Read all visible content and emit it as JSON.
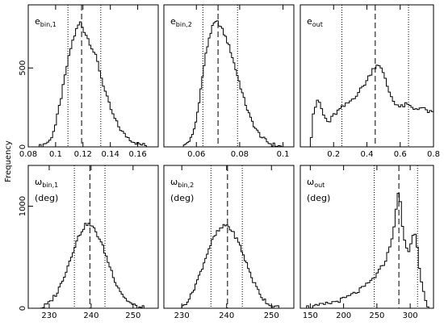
{
  "ylabel": "Frequency",
  "chart_data": [
    {
      "type": "histogram",
      "label_main": "e",
      "label_sub": "bin,1",
      "label_extra": "",
      "xlim": [
        0.08,
        0.175
      ],
      "ylim": [
        0,
        900
      ],
      "xticks": [
        0.08,
        0.1,
        0.12,
        0.14,
        0.16
      ],
      "xtick_labels": [
        "0.08",
        "0.1",
        "0.12",
        "0.14",
        "0.16"
      ],
      "yticks": [
        0,
        500
      ],
      "ytick_labels": [
        "0",
        "500"
      ],
      "median": 0.119,
      "ci": [
        0.109,
        0.133
      ],
      "curve_x": [
        0.088,
        0.096,
        0.1,
        0.104,
        0.108,
        0.112,
        0.116,
        0.118,
        0.12,
        0.123,
        0.126,
        0.13,
        0.134,
        0.138,
        0.142,
        0.146,
        0.15,
        0.155,
        0.16,
        0.166,
        0.172
      ],
      "curve_y": [
        0,
        40,
        140,
        310,
        500,
        660,
        760,
        790,
        750,
        700,
        640,
        560,
        420,
        300,
        200,
        130,
        80,
        45,
        20,
        8,
        0
      ]
    },
    {
      "type": "histogram",
      "label_main": "e",
      "label_sub": "bin,2",
      "label_extra": "",
      "xlim": [
        0.045,
        0.105
      ],
      "ylim": [
        0,
        900
      ],
      "xticks": [
        0.06,
        0.08,
        0.1
      ],
      "xtick_labels": [
        "0.06",
        "0.08",
        "0.1"
      ],
      "yticks": [],
      "ytick_labels": [],
      "median": 0.07,
      "ci": [
        0.063,
        0.079
      ],
      "curve_x": [
        0.054,
        0.058,
        0.06,
        0.062,
        0.064,
        0.066,
        0.068,
        0.07,
        0.072,
        0.074,
        0.076,
        0.078,
        0.08,
        0.082,
        0.085,
        0.088,
        0.091,
        0.094,
        0.097,
        0.1
      ],
      "curve_y": [
        0,
        60,
        170,
        360,
        560,
        700,
        780,
        790,
        740,
        680,
        600,
        500,
        400,
        300,
        180,
        100,
        50,
        20,
        8,
        0
      ]
    },
    {
      "type": "histogram",
      "label_main": "e",
      "label_sub": "out",
      "label_extra": "",
      "xlim": [
        0.0,
        0.8
      ],
      "ylim": [
        0,
        900
      ],
      "xticks": [
        0.2,
        0.4,
        0.6,
        0.8
      ],
      "xtick_labels": [
        "0.2",
        "0.4",
        "0.6",
        "0.8"
      ],
      "yticks": [],
      "ytick_labels": [],
      "median": 0.45,
      "ci": [
        0.25,
        0.65
      ],
      "curve_x": [
        0.06,
        0.08,
        0.11,
        0.14,
        0.17,
        0.2,
        0.24,
        0.28,
        0.32,
        0.36,
        0.4,
        0.44,
        0.47,
        0.5,
        0.53,
        0.56,
        0.6,
        0.64,
        0.68,
        0.72,
        0.76,
        0.8
      ],
      "curve_y": [
        0,
        230,
        300,
        200,
        150,
        200,
        240,
        270,
        310,
        360,
        420,
        500,
        530,
        460,
        360,
        290,
        250,
        270,
        240,
        250,
        230,
        210
      ]
    },
    {
      "type": "histogram",
      "label_main": "ω",
      "label_sub": "bin,1",
      "label_extra": "(deg)",
      "xlim": [
        225,
        256
      ],
      "ylim": [
        0,
        1400
      ],
      "xticks": [
        230,
        240,
        250
      ],
      "xtick_labels": [
        "230",
        "240",
        "250"
      ],
      "yticks": [
        0,
        1000
      ],
      "ytick_labels": [
        "0",
        "1000"
      ],
      "median": 239.7,
      "ci": [
        236.0,
        243.3
      ],
      "curve_x": [
        228,
        230,
        232,
        234,
        236,
        237,
        238,
        239,
        240,
        241,
        242,
        243,
        244,
        246,
        248,
        250,
        251.5,
        253
      ],
      "curve_y": [
        0,
        50,
        160,
        360,
        600,
        700,
        780,
        830,
        810,
        760,
        680,
        580,
        460,
        240,
        100,
        30,
        8,
        0
      ]
    },
    {
      "type": "histogram",
      "label_main": "ω",
      "label_sub": "bin,2",
      "label_extra": "(deg)",
      "xlim": [
        226,
        255
      ],
      "ylim": [
        0,
        1400
      ],
      "xticks": [
        230,
        240,
        250
      ],
      "xtick_labels": [
        "230",
        "240",
        "250"
      ],
      "yticks": [],
      "ytick_labels": [],
      "median": 240.2,
      "ci": [
        236.5,
        243.5
      ],
      "curve_x": [
        230,
        232,
        234,
        236,
        237,
        238,
        239,
        240,
        241,
        242,
        243,
        244,
        246,
        248,
        250,
        252
      ],
      "curve_y": [
        0,
        120,
        330,
        580,
        680,
        750,
        790,
        820,
        770,
        700,
        610,
        490,
        260,
        100,
        20,
        0
      ]
    },
    {
      "type": "histogram",
      "label_main": "ω",
      "label_sub": "out",
      "label_extra": "(deg)",
      "xlim": [
        135,
        335
      ],
      "ylim": [
        0,
        1400
      ],
      "xticks": [
        150,
        200,
        250,
        300
      ],
      "xtick_labels": [
        "150",
        "200",
        "250",
        "300"
      ],
      "yticks": [],
      "ytick_labels": [],
      "median": 283,
      "ci": [
        246,
        311
      ],
      "curve_x": [
        138,
        160,
        180,
        200,
        215,
        230,
        240,
        250,
        260,
        268,
        274,
        278,
        281,
        284,
        287,
        290,
        294,
        298,
        302,
        306,
        310,
        313,
        316,
        320,
        324,
        326,
        328
      ],
      "curve_y": [
        5,
        20,
        50,
        90,
        140,
        200,
        260,
        330,
        430,
        560,
        740,
        900,
        1080,
        1180,
        900,
        700,
        580,
        560,
        640,
        780,
        640,
        440,
        280,
        160,
        80,
        30,
        0
      ]
    }
  ]
}
